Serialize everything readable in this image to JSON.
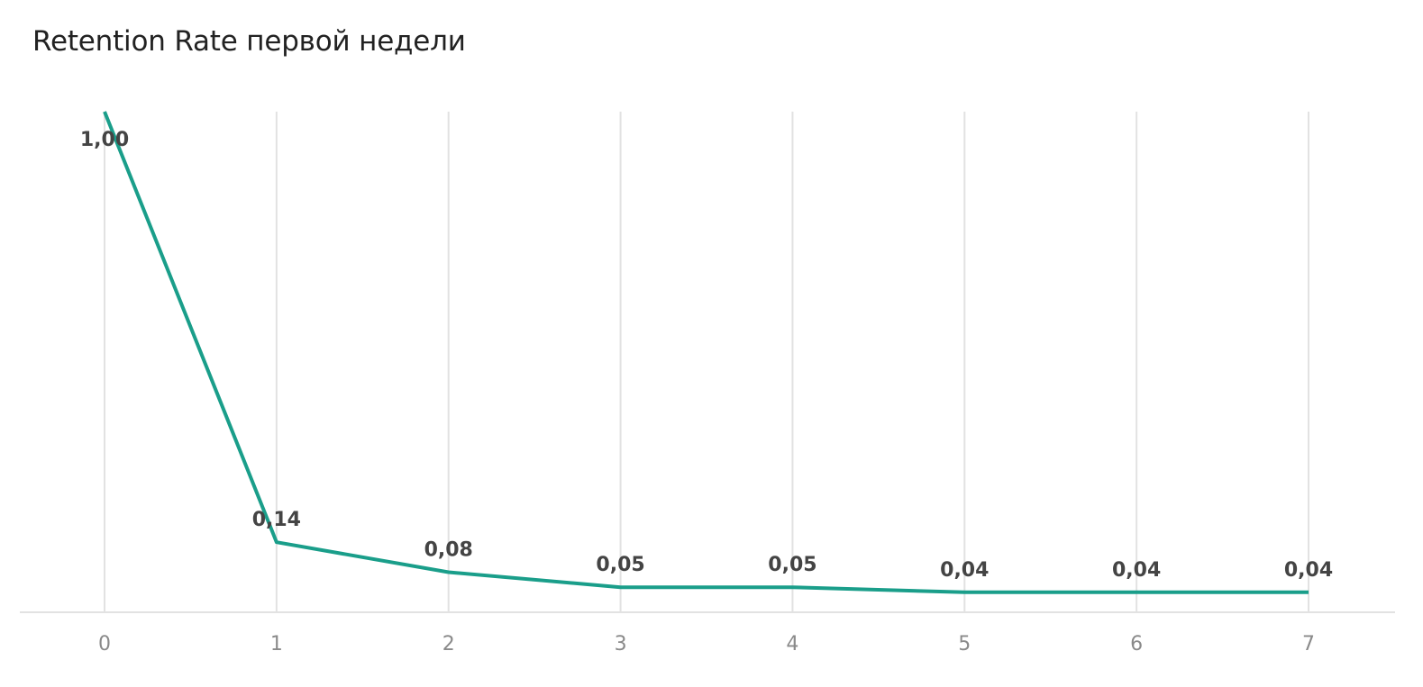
{
  "chart_data": {
    "type": "line",
    "title": "Retention Rate первой недели",
    "xlabel": "",
    "ylabel": "",
    "categories": [
      "0",
      "1",
      "2",
      "3",
      "4",
      "5",
      "6",
      "7"
    ],
    "series": [
      {
        "values": [
          1.0,
          0.14,
          0.08,
          0.05,
          0.05,
          0.04,
          0.04,
          0.04
        ],
        "labels": [
          "1,00",
          "0,14",
          "0,08",
          "0,05",
          "0,05",
          "0,04",
          "0,04",
          "0,04"
        ],
        "color": "#1a9e8a"
      }
    ],
    "ylim": [
      0,
      1
    ],
    "grid": "vertical",
    "legend": "none"
  }
}
